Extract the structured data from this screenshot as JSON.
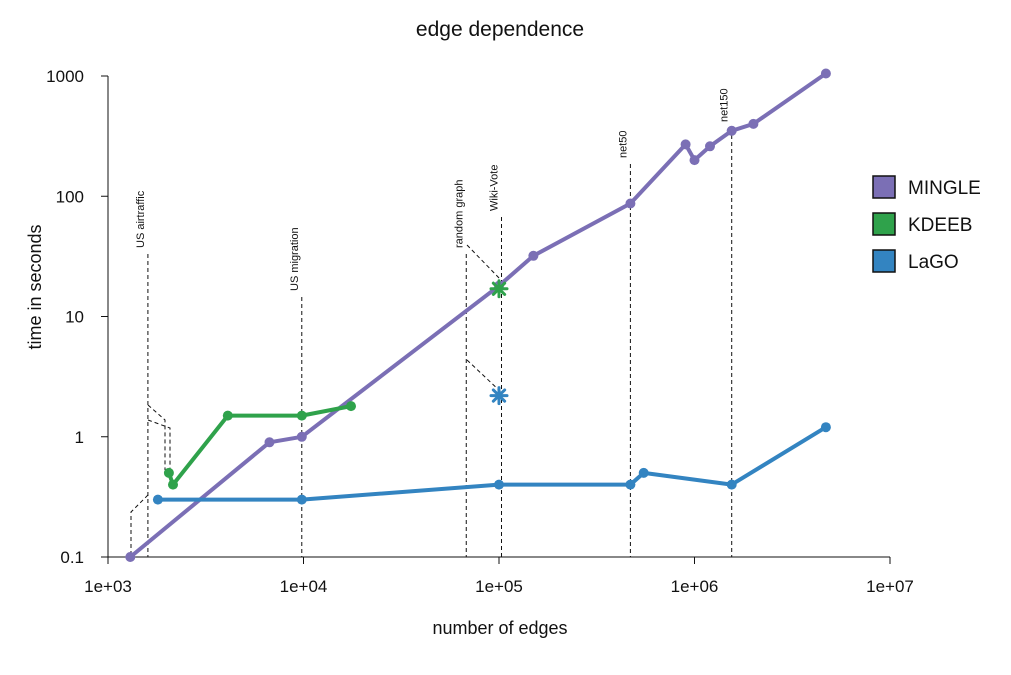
{
  "chart_data": {
    "type": "line",
    "title": "edge dependence",
    "xlabel": "number of edges",
    "ylabel": "time in seconds",
    "x_scale": "log",
    "y_scale": "log",
    "xlim": [
      1000,
      10000000
    ],
    "ylim": [
      0.1,
      1000
    ],
    "x_ticks": [
      {
        "value": 1000,
        "label": "1e+03"
      },
      {
        "value": 10000,
        "label": "1e+04"
      },
      {
        "value": 100000,
        "label": "1e+05"
      },
      {
        "value": 1000000,
        "label": "1e+06"
      },
      {
        "value": 10000000,
        "label": "1e+07"
      }
    ],
    "y_ticks": [
      {
        "value": 0.1,
        "label": "0.1"
      },
      {
        "value": 1,
        "label": "1"
      },
      {
        "value": 10,
        "label": "10"
      },
      {
        "value": 100,
        "label": "100"
      },
      {
        "value": 1000,
        "label": "1000"
      }
    ],
    "grid": false,
    "legend_position": "right",
    "series": [
      {
        "name": "MINGLE",
        "color": "#7b6fb5",
        "marker": "circle",
        "points": [
          [
            1300,
            0.1
          ],
          [
            6700,
            0.9
          ],
          [
            9800,
            1.0
          ],
          [
            100000,
            18
          ],
          [
            150000,
            32
          ],
          [
            470000,
            87
          ],
          [
            900000,
            270
          ],
          [
            1000000,
            200
          ],
          [
            1200000,
            260
          ],
          [
            1550000,
            350
          ],
          [
            2000000,
            400
          ],
          [
            4700000,
            1050
          ]
        ]
      },
      {
        "name": "KDEEB",
        "color": "#2fa24b",
        "marker": "circle",
        "points": [
          [
            2050,
            0.5
          ],
          [
            2150,
            0.4
          ],
          [
            4100,
            1.5
          ],
          [
            9800,
            1.5
          ],
          [
            17500,
            1.8
          ]
        ]
      },
      {
        "name": "LaGO",
        "color": "#3384c1",
        "marker": "circle",
        "points": [
          [
            1800,
            0.3
          ],
          [
            9800,
            0.3
          ],
          [
            100000,
            0.4
          ],
          [
            470000,
            0.4
          ],
          [
            550000,
            0.5
          ],
          [
            1550000,
            0.4
          ],
          [
            4700000,
            1.2
          ]
        ]
      }
    ],
    "highlight_markers": [
      {
        "series": "KDEEB",
        "color": "#2fa24b",
        "shape": "star",
        "x": 100000,
        "y": 17
      },
      {
        "series": "LaGO",
        "color": "#3384c1",
        "shape": "star",
        "x": 100000,
        "y": 2.2
      }
    ],
    "annotations": [
      {
        "label": "US airtraffic",
        "x": 1600
      },
      {
        "label": "US migration",
        "x": 9800
      },
      {
        "label": "random graph",
        "x": 68000
      },
      {
        "label": "Wiki-Vote",
        "x": 103000
      },
      {
        "label": "net50",
        "x": 470000
      },
      {
        "label": "net150",
        "x": 1550000
      }
    ]
  }
}
